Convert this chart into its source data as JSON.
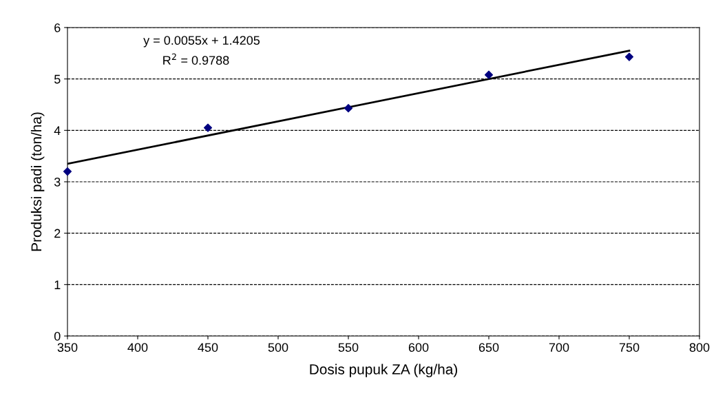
{
  "chart_data": {
    "type": "scatter",
    "xlabel": "Dosis pupuk ZA (kg/ha)",
    "ylabel": "Produksi padi (ton/ha)",
    "series": [
      {
        "color": "#000080",
        "marker": "diamond",
        "x": [
          350,
          450,
          550,
          650,
          750
        ],
        "values": [
          3.2,
          4.05,
          4.43,
          5.08,
          5.43
        ]
      },
      {
        "type": "line",
        "color": "#000000",
        "marker": "none",
        "line_style": "solid",
        "x": [
          350,
          750
        ],
        "values": [
          3.35,
          5.55
        ]
      }
    ],
    "annotations": [
      "y = 0.0055x + 1.4205",
      "R$^{2}$ = 0.9788"
    ],
    "xlim": [
      350,
      800
    ],
    "xticks": [
      350,
      400,
      450,
      500,
      550,
      600,
      650,
      700,
      750,
      800
    ],
    "ylim": [
      0,
      6
    ],
    "yticks": [
      0,
      1,
      2,
      3,
      4,
      5,
      6
    ],
    "grid": "y",
    "legend": false
  }
}
